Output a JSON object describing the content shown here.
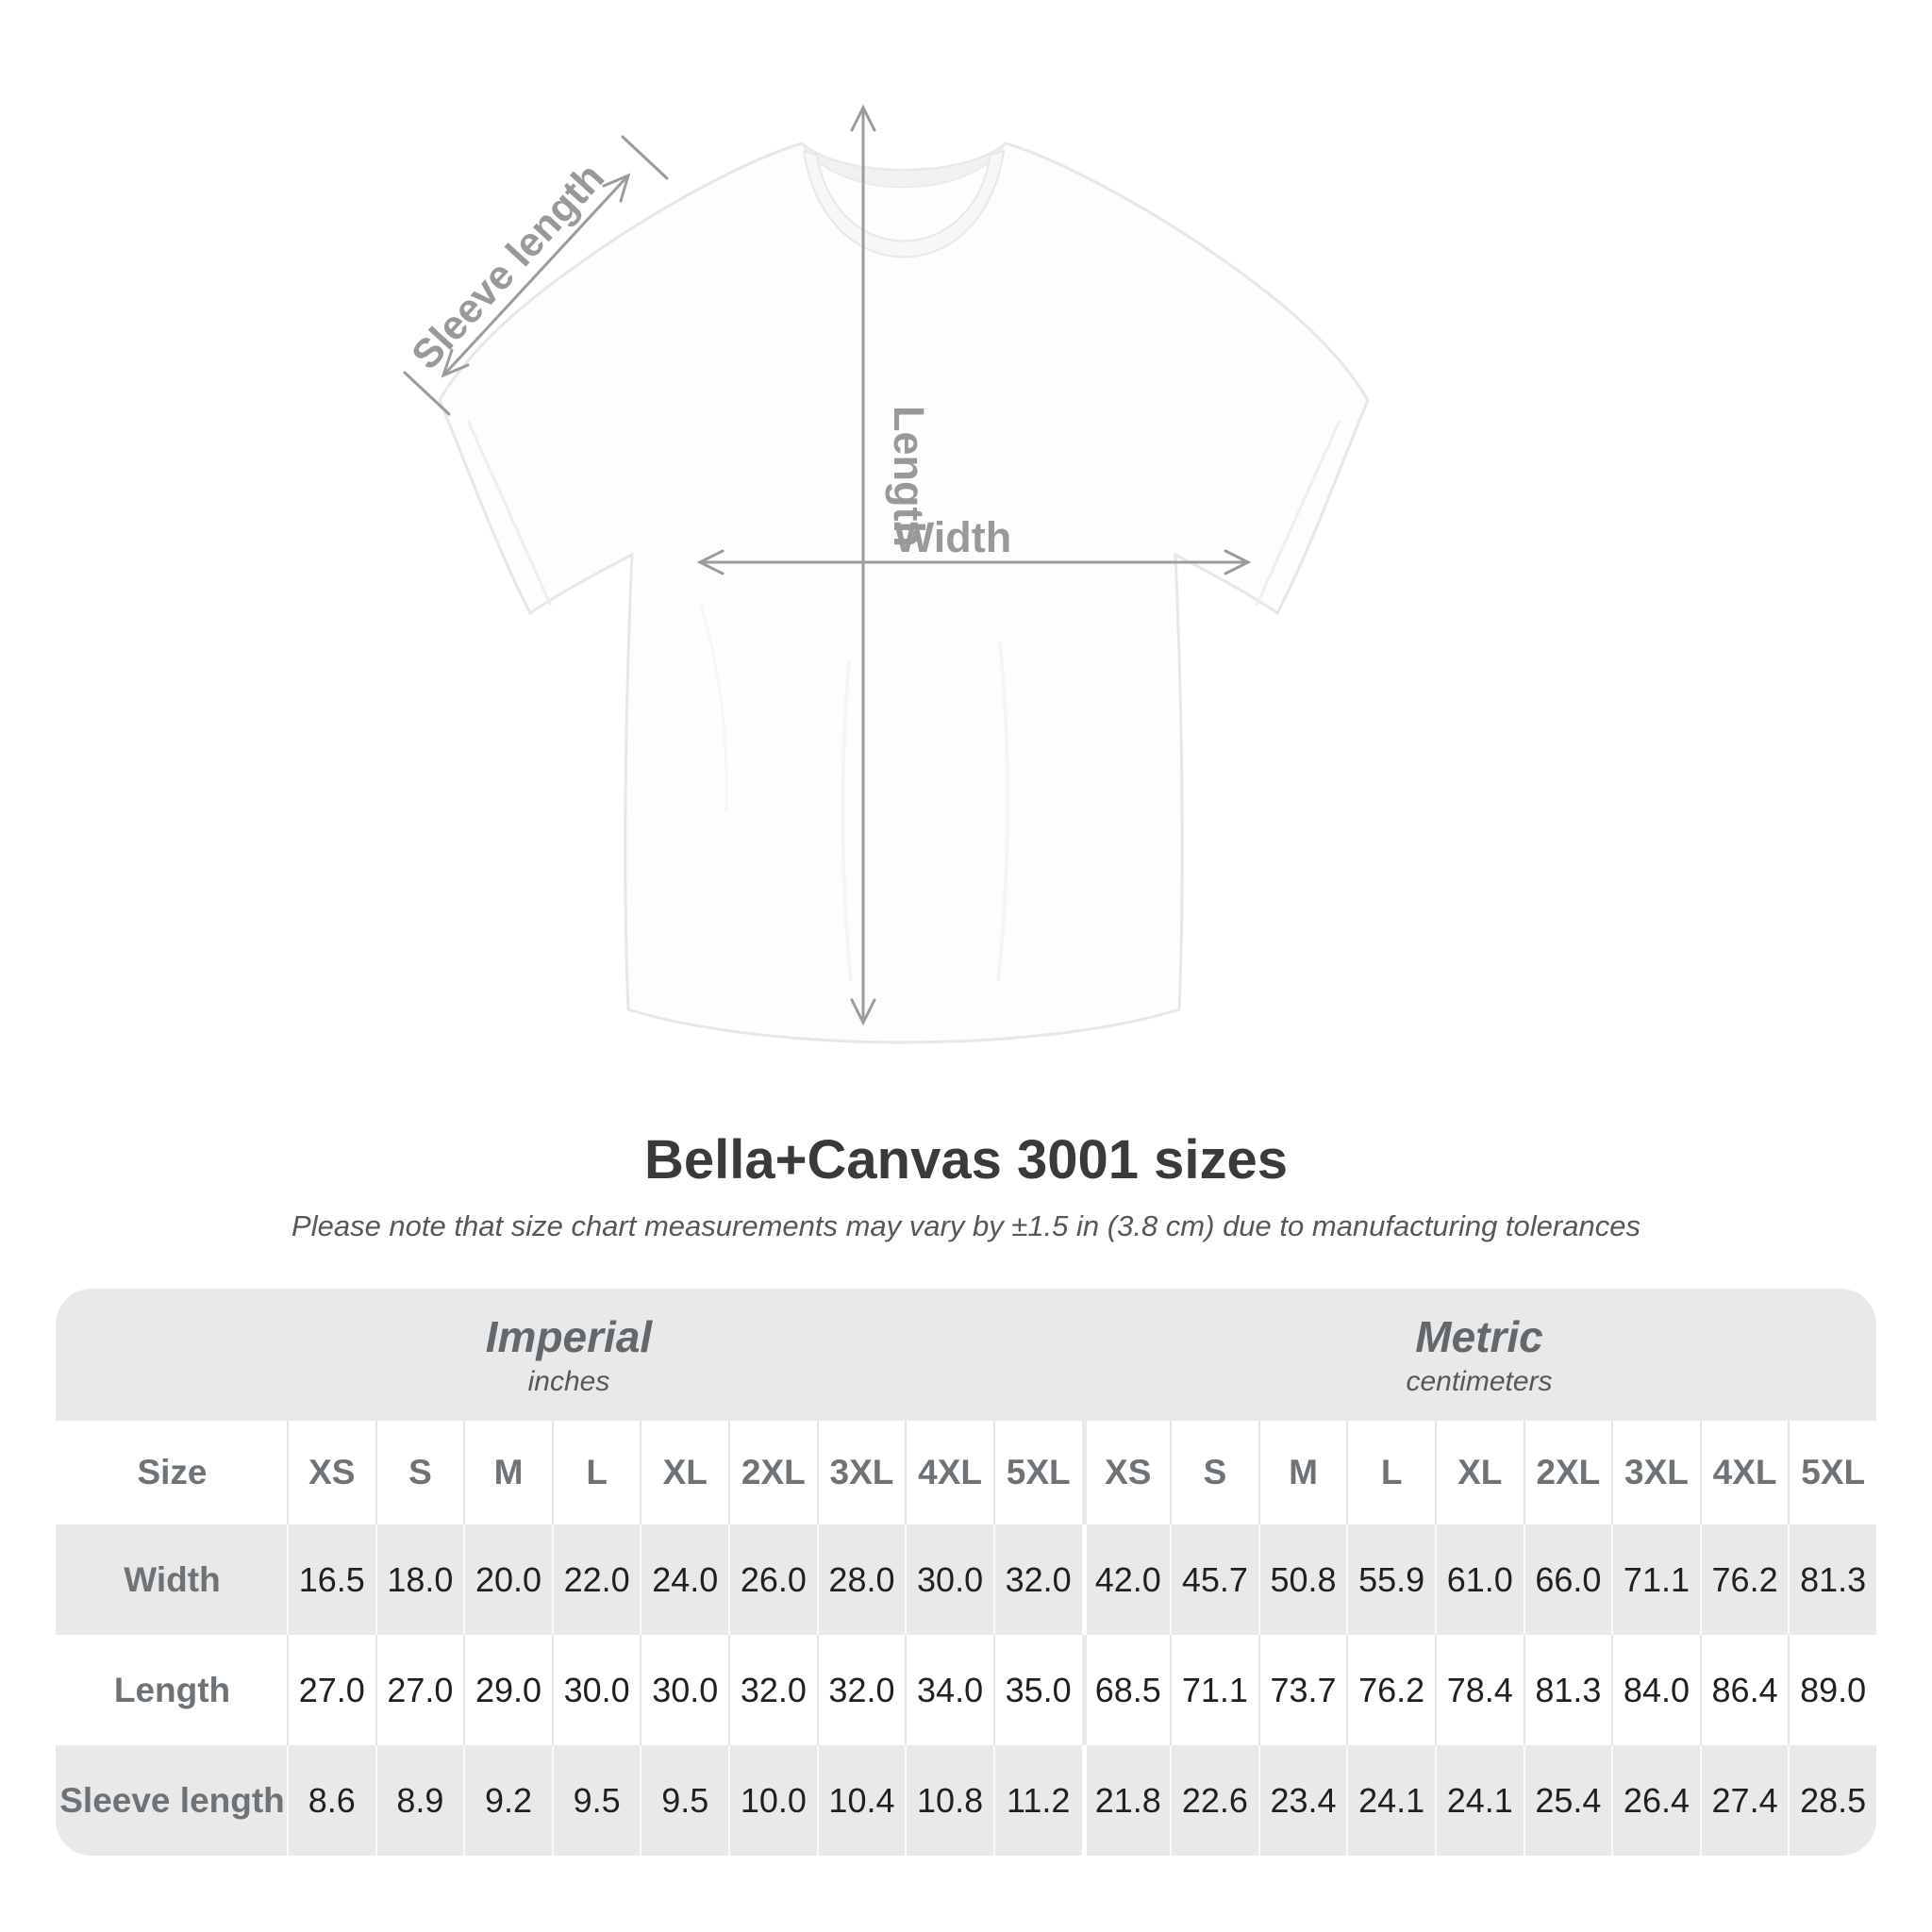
{
  "diagram": {
    "sleeve_label": "Sleeve length",
    "length_label": "Length",
    "width_label": "Width",
    "line_color": "#9c9c9c",
    "label_color": "#97999b"
  },
  "header": {
    "title": "Bella+Canvas 3001 sizes",
    "subtitle": "Please note that size chart measurements may vary by ±1.5 in (3.8 cm) due to manufacturing tolerances"
  },
  "table": {
    "size_header": "Size",
    "sizes": [
      "XS",
      "S",
      "M",
      "L",
      "XL",
      "2XL",
      "3XL",
      "4XL",
      "5XL"
    ],
    "group_headers": [
      {
        "label": "Imperial",
        "unit": "inches"
      },
      {
        "label": "Metric",
        "unit": "centimeters"
      }
    ],
    "colors": {
      "band_background": "#e9e9e9",
      "alt_row_background": "#e9e9e9",
      "heading_text": "#6e7377",
      "value_text": "#1f2022"
    }
  },
  "chart_data": {
    "type": "table",
    "title": "Bella+Canvas 3001 sizes",
    "sections": [
      {
        "name": "Imperial",
        "unit": "inches"
      },
      {
        "name": "Metric",
        "unit": "centimeters"
      }
    ],
    "columns": [
      "Size",
      "XS",
      "S",
      "M",
      "L",
      "XL",
      "2XL",
      "3XL",
      "4XL",
      "5XL",
      "XS",
      "S",
      "M",
      "L",
      "XL",
      "2XL",
      "3XL",
      "4XL",
      "5XL"
    ],
    "rows": [
      {
        "label": "Width",
        "imperial": [
          "16.5",
          "18.0",
          "20.0",
          "22.0",
          "24.0",
          "26.0",
          "28.0",
          "30.0",
          "32.0"
        ],
        "metric": [
          "42.0",
          "45.7",
          "50.8",
          "55.9",
          "61.0",
          "66.0",
          "71.1",
          "76.2",
          "81.3"
        ]
      },
      {
        "label": "Length",
        "imperial": [
          "27.0",
          "27.0",
          "29.0",
          "30.0",
          "30.0",
          "32.0",
          "32.0",
          "34.0",
          "35.0"
        ],
        "metric": [
          "68.5",
          "71.1",
          "73.7",
          "76.2",
          "78.4",
          "81.3",
          "84.0",
          "86.4",
          "89.0"
        ]
      },
      {
        "label": "Sleeve length",
        "imperial": [
          "8.6",
          "8.9",
          "9.2",
          "9.5",
          "9.5",
          "10.0",
          "10.4",
          "10.8",
          "11.2"
        ],
        "metric": [
          "21.8",
          "22.6",
          "23.4",
          "24.1",
          "24.1",
          "25.4",
          "26.4",
          "27.4",
          "28.5"
        ]
      }
    ]
  }
}
